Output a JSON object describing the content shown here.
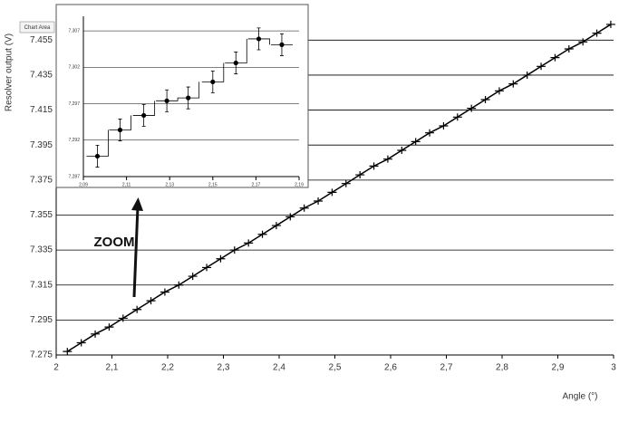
{
  "chart_data": [
    {
      "type": "line",
      "y_label": "Resolver output (V)",
      "x_label": "Angle (°)",
      "annotation": "ZOOM",
      "tooltip": "Chart Area",
      "x": [
        2.02,
        2.045,
        2.07,
        2.095,
        2.12,
        2.145,
        2.17,
        2.195,
        2.22,
        2.245,
        2.27,
        2.295,
        2.32,
        2.345,
        2.37,
        2.395,
        2.42,
        2.445,
        2.47,
        2.495,
        2.52,
        2.545,
        2.57,
        2.595,
        2.62,
        2.645,
        2.67,
        2.695,
        2.72,
        2.745,
        2.77,
        2.795,
        2.82,
        2.845,
        2.87,
        2.895,
        2.92,
        2.945,
        2.97,
        2.995
      ],
      "series": [
        {
          "color": "#000000",
          "values": [
            7.277,
            7.282,
            7.287,
            7.291,
            7.296,
            7.301,
            7.306,
            7.311,
            7.315,
            7.32,
            7.325,
            7.33,
            7.335,
            7.339,
            7.344,
            7.349,
            7.354,
            7.359,
            7.363,
            7.368,
            7.373,
            7.378,
            7.383,
            7.387,
            7.392,
            7.397,
            7.402,
            7.406,
            7.411,
            7.416,
            7.421,
            7.426,
            7.43,
            7.435,
            7.44,
            7.445,
            7.45,
            7.454,
            7.459,
            7.464
          ]
        }
      ],
      "xlim": [
        2,
        3
      ],
      "xticks": [
        2,
        {
          "value": 2.1,
          "label": "2,1"
        },
        {
          "value": 2.2,
          "label": "2,2"
        },
        {
          "value": 2.3,
          "label": "2,3"
        },
        {
          "value": 2.4,
          "label": "2,4"
        },
        {
          "value": 2.5,
          "label": "2,5"
        },
        {
          "value": 2.6,
          "label": "2,6"
        },
        {
          "value": 2.7,
          "label": "2,7"
        },
        {
          "value": 2.8,
          "label": "2,8"
        },
        {
          "value": 2.9,
          "label": "2,9"
        },
        3
      ],
      "ylim": [
        7.275,
        7.465
      ],
      "yticks": [
        7.275,
        7.295,
        7.315,
        7.335,
        7.355,
        7.375,
        7.395,
        7.415,
        7.435,
        7.455
      ],
      "grid": true
    },
    {
      "type": "scatter",
      "x": [
        2.0965,
        2.107,
        2.118,
        2.1287,
        2.1386,
        2.15,
        2.1607,
        2.1713,
        2.182
      ],
      "series": [
        {
          "color": "#000000",
          "values": [
            7.2898,
            7.2934,
            7.2954,
            7.2974,
            7.2978,
            7.3,
            7.3026,
            7.3059,
            7.3051
          ],
          "errors": [
            0.0015,
            0.0015,
            0.0015,
            0.0015,
            0.0015,
            0.0015,
            0.0015,
            0.0015,
            0.0015
          ]
        }
      ],
      "xlim": [
        2.09,
        2.19
      ],
      "xticks": [
        {
          "value": 2.09,
          "label": "2,09"
        },
        {
          "value": 2.11,
          "label": "2,11"
        },
        {
          "value": 2.13,
          "label": "2,13"
        },
        {
          "value": 2.15,
          "label": "2,15"
        },
        {
          "value": 2.17,
          "label": "2,17"
        },
        {
          "value": 2.19,
          "label": "2,19"
        }
      ],
      "ylim": [
        7.287,
        7.309
      ],
      "yticks": [
        {
          "value": 7.287,
          "label": "7,287"
        },
        {
          "value": 7.292,
          "label": "7,292"
        },
        {
          "value": 7.297,
          "label": "7,297"
        },
        {
          "value": 7.302,
          "label": "7,302"
        },
        {
          "value": 7.307,
          "label": "7,307"
        }
      ],
      "grid": true
    }
  ]
}
